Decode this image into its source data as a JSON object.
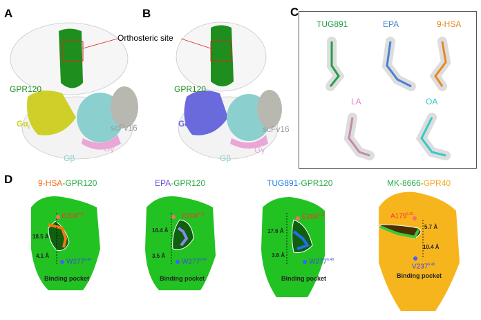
{
  "panel_a": {
    "letter": "A",
    "orthosteric_label": "Orthosteric site",
    "receptor": "GPR120",
    "galpha": "Gα",
    "galpha_sub": "i",
    "gbeta": "Gβ",
    "ggamma": "Gγ",
    "scfv": "scFv16",
    "colors": {
      "receptor": "#1e8f1e",
      "galpha": "#d4d42a",
      "gbeta": "#8ccfcf",
      "ggamma": "#e9a6d6",
      "scfv": "#b0b0b0"
    }
  },
  "panel_b": {
    "letter": "B",
    "orthosteric_label": "Orthosteric site",
    "receptor": "GPR120",
    "galpha": "Gα",
    "galpha_sub": "iq",
    "gbeta": "Gβ",
    "ggamma": "Gγ",
    "scfv": "scFv16",
    "colors": {
      "galpha": "#6a6adc"
    }
  },
  "panel_c": {
    "letter": "C",
    "ligands": [
      {
        "name": "TUG891",
        "color": "#22a046"
      },
      {
        "name": "EPA",
        "color": "#4a7fd4"
      },
      {
        "name": "9-HSA",
        "color": "#e58a1f"
      },
      {
        "name": "LA",
        "color": "#e87fc8"
      },
      {
        "name": "OA",
        "color": "#35c9c9"
      }
    ]
  },
  "panel_d": {
    "letter": "D",
    "pocket_label": "Binding pocket",
    "complexes": [
      {
        "ligand": "9-HSA",
        "sep": "-",
        "receptor": "GPR120",
        "ligand_color": "#f26b1d",
        "receptor_color": "#2aaa4a",
        "surface": "#22c222",
        "ligand_atoms": "#f07a10",
        "top_res": "E204",
        "top_sup": "5.35",
        "bottom_res": "W277",
        "bottom_sup": "6.48",
        "upper_dist": "18.5 Å",
        "lower_dist": "4.1 Å"
      },
      {
        "ligand": "EPA",
        "sep": "-",
        "receptor": "GPR120",
        "ligand_color": "#6a4fdc",
        "receptor_color": "#2aaa4a",
        "surface": "#22c222",
        "ligand_atoms": "#8a8ae8",
        "top_res": "E204",
        "top_sup": "5.35",
        "bottom_res": "W277",
        "bottom_sup": "6.48",
        "upper_dist": "16.4 Å",
        "lower_dist": "3.5 Å"
      },
      {
        "ligand": "TUG891",
        "sep": "-",
        "receptor": "GPR120",
        "ligand_color": "#2a7fe0",
        "receptor_color": "#2aaa4a",
        "surface": "#22c222",
        "ligand_atoms": "#1f6ff0",
        "top_res": "E204",
        "top_sup": "5.35",
        "bottom_res": "W277",
        "bottom_sup": "6.48",
        "upper_dist": "17.6 Å",
        "lower_dist": "3.6 Å"
      },
      {
        "ligand": "MK-8666",
        "sep": "-",
        "receptor": "GPR40",
        "ligand_color": "#2aaa4a",
        "receptor_color": "#f5a623",
        "surface": "#f7b51d",
        "ligand_atoms": "#3cc83c",
        "top_res": "A179",
        "top_sup": "5.35",
        "bottom_res": "V237",
        "bottom_sup": "6.48",
        "upper_dist": "5.7 Å",
        "lower_dist": "10.4 Å"
      }
    ]
  }
}
